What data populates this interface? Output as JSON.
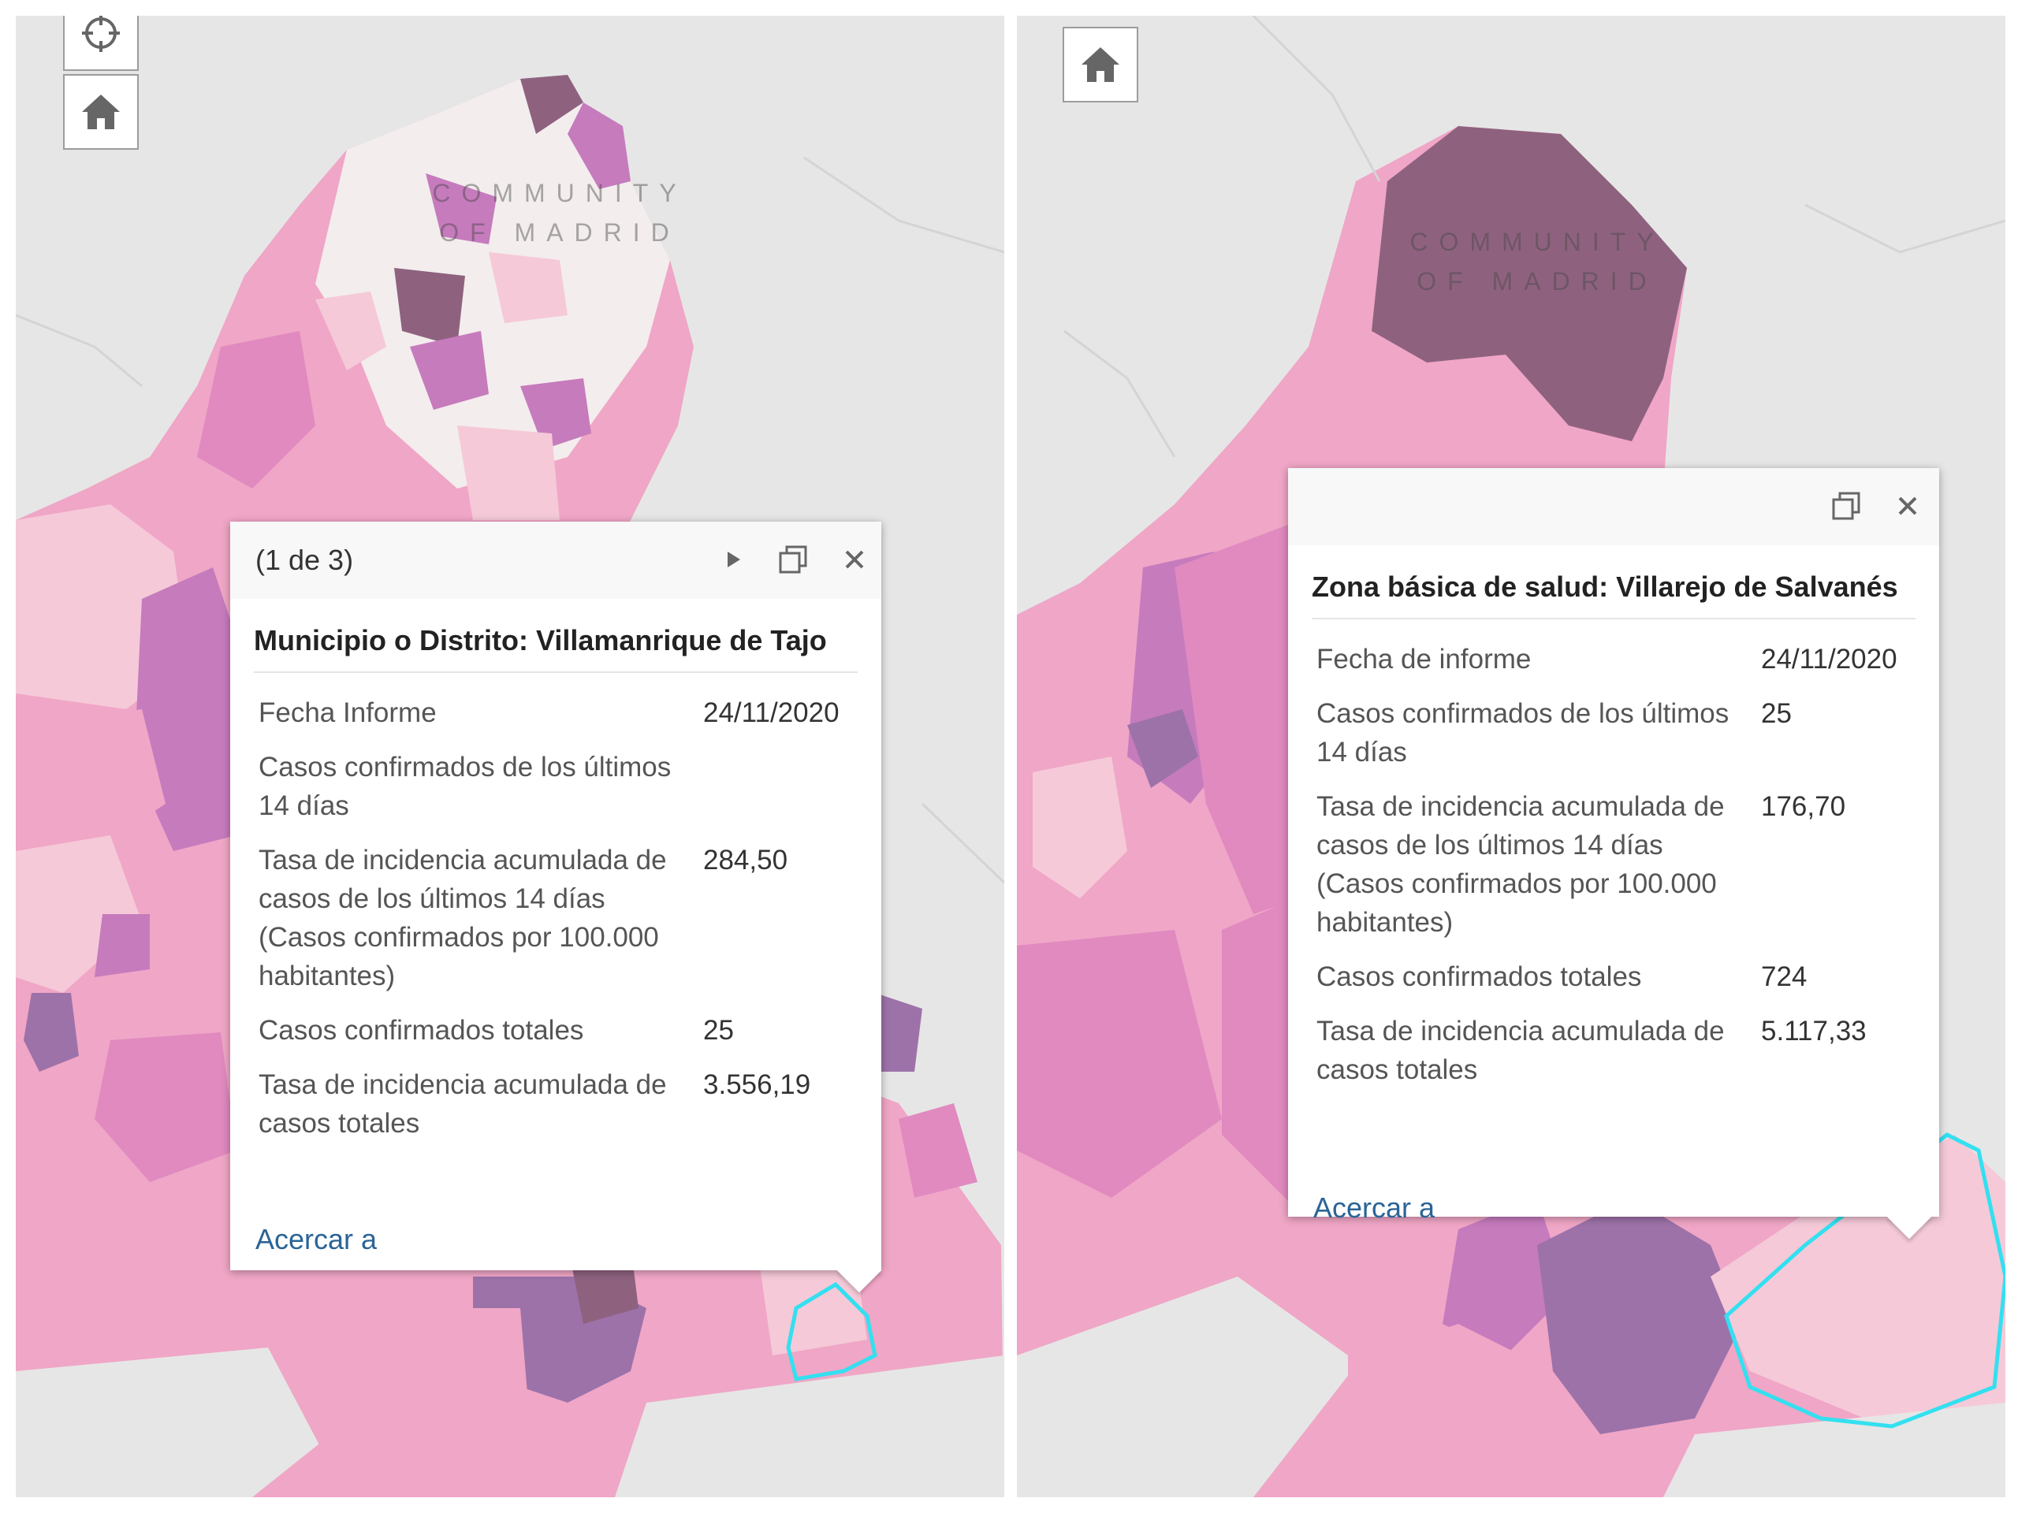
{
  "colors": {
    "background": "#e6e6e6",
    "accent_link": "#2a6496",
    "highlight_outline": "#33e0f0",
    "choropleth": [
      "#f3eded",
      "#f5c9d8",
      "#f0a6c6",
      "#e08ac0",
      "#c67bbd",
      "#9d72a9",
      "#8e627f"
    ]
  },
  "panels": [
    {
      "controls": [
        "locate-icon",
        "home-icon"
      ],
      "map_label": [
        "COMMUNITY",
        "OF MADRID"
      ],
      "popup": {
        "header_title": "(1 de 3)",
        "icons": [
          "next-icon",
          "maximize-icon",
          "close-icon"
        ],
        "title": "Municipio o Distrito: Villamanrique de Tajo",
        "rows": [
          {
            "label": "Fecha Informe",
            "value": "24/11/2020"
          },
          {
            "label": "Casos confirmados de los últimos 14 días",
            "value": ""
          },
          {
            "label": "Tasa de incidencia acumulada de casos de los últimos 14 días (Casos confirmados por 100.000 habitantes)",
            "value": "284,50"
          },
          {
            "label": "Casos confirmados totales",
            "value": "25"
          },
          {
            "label": "Tasa de incidencia acumulada de casos totales",
            "value": "3.556,19"
          }
        ],
        "zoom_link": "Acercar a"
      }
    },
    {
      "controls": [
        "home-icon"
      ],
      "map_label": [
        "COMMUNITY",
        "OF MADRID"
      ],
      "popup": {
        "header_title": "",
        "icons": [
          "maximize-icon",
          "close-icon"
        ],
        "title": "Zona básica de salud: Villarejo de Salvanés",
        "rows": [
          {
            "label": "Fecha de informe",
            "value": "24/11/2020"
          },
          {
            "label": "Casos confirmados de los últimos 14 días",
            "value": "25"
          },
          {
            "label": "Tasa de incidencia acumulada de casos de los últimos 14 días (Casos confirmados por 100.000 habitantes)",
            "value": "176,70"
          },
          {
            "label": "Casos confirmados totales",
            "value": "724"
          },
          {
            "label": "Tasa de incidencia acumulada de casos totales",
            "value": "5.117,33"
          }
        ],
        "zoom_link": "Acercar a"
      }
    }
  ]
}
